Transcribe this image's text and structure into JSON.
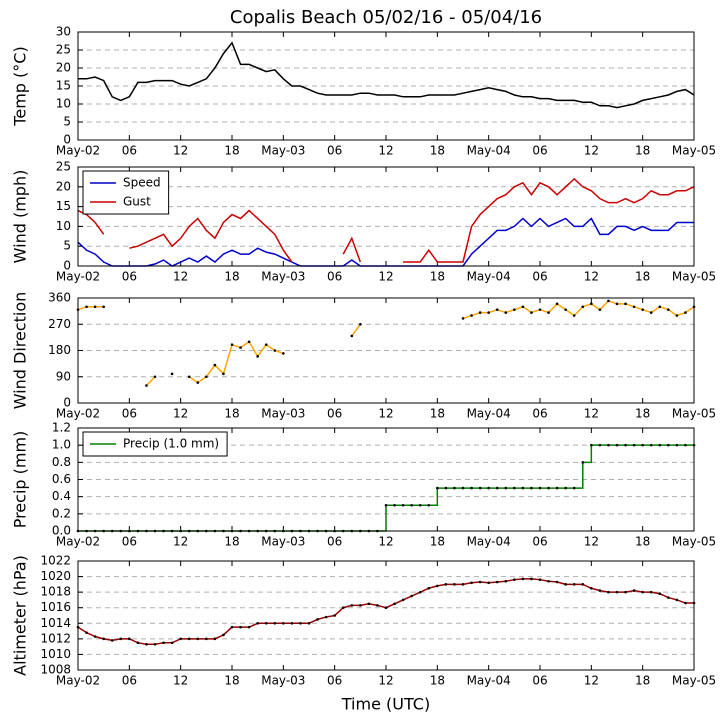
{
  "chart_data": [
    {
      "type": "line",
      "title": "Copalis Beach 05/02/16 - 05/04/16",
      "ylabel": "Temp (°C)",
      "x": [
        0,
        1,
        2,
        3,
        4,
        5,
        6,
        7,
        8,
        9,
        10,
        11,
        12,
        13,
        14,
        15,
        16,
        17,
        18,
        19,
        20,
        21,
        22,
        23,
        24,
        25,
        26,
        27,
        28,
        29,
        30,
        31,
        32,
        33,
        34,
        35,
        36,
        37,
        38,
        39,
        40,
        41,
        42,
        43,
        44,
        45,
        46,
        47,
        48,
        49,
        50,
        51,
        52,
        53,
        54,
        55,
        56,
        57,
        58,
        59,
        60,
        61,
        62,
        63,
        64,
        65,
        66,
        67,
        68,
        69,
        70,
        71,
        72
      ],
      "series": [
        {
          "color": "#000000",
          "values": [
            17,
            17,
            17.5,
            16.5,
            12,
            11,
            12,
            16,
            16,
            16.5,
            16.5,
            16.5,
            15.5,
            15,
            16,
            17,
            20,
            24,
            27,
            21,
            21,
            20,
            19,
            19.5,
            17,
            15,
            15,
            14,
            13,
            12.5,
            12.5,
            12.5,
            12.5,
            13,
            13,
            12.5,
            12.5,
            12.5,
            12,
            12,
            12,
            12.5,
            12.5,
            12.5,
            12.5,
            13,
            13.5,
            14,
            14.5,
            14,
            13.5,
            12.5,
            12,
            12,
            11.5,
            11.5,
            11,
            11,
            11,
            10.5,
            10.5,
            9.5,
            9.5,
            9,
            9.5,
            10,
            11,
            11.5,
            12,
            12.5,
            13.5,
            14,
            12.5
          ]
        }
      ],
      "xlim": [
        0,
        72
      ],
      "xticks": [
        {
          "value": 0,
          "label": "May-02"
        },
        {
          "value": 6,
          "label": "06"
        },
        12,
        18,
        {
          "value": 24,
          "label": "May-03"
        },
        {
          "value": 30,
          "label": "06"
        },
        {
          "value": 36,
          "label": "12"
        },
        {
          "value": 42,
          "label": "18"
        },
        {
          "value": 48,
          "label": "May-04"
        },
        {
          "value": 54,
          "label": "06"
        },
        {
          "value": 60,
          "label": "12"
        },
        {
          "value": 66,
          "label": "18"
        },
        {
          "value": 72,
          "label": "May-05"
        }
      ],
      "ylim": [
        0,
        30
      ],
      "yticks": [
        0,
        5,
        10,
        15,
        20,
        25,
        30
      ],
      "grid": true,
      "markers": false,
      "step": false
    },
    {
      "type": "line",
      "ylabel": "Wind (mph)",
      "x": [
        0,
        1,
        2,
        3,
        4,
        5,
        6,
        7,
        8,
        9,
        10,
        11,
        12,
        13,
        14,
        15,
        16,
        17,
        18,
        19,
        20,
        21,
        22,
        23,
        24,
        25,
        26,
        27,
        28,
        29,
        30,
        31,
        32,
        33,
        34,
        35,
        36,
        37,
        38,
        39,
        40,
        41,
        42,
        43,
        44,
        45,
        46,
        47,
        48,
        49,
        50,
        51,
        52,
        53,
        54,
        55,
        56,
        57,
        58,
        59,
        60,
        61,
        62,
        63,
        64,
        65,
        66,
        67,
        68,
        69,
        70,
        71,
        72
      ],
      "series": [
        {
          "name": "Speed",
          "color": "#0000cc",
          "values": [
            6,
            4,
            3,
            1,
            0,
            0,
            0,
            0,
            0,
            0.5,
            1.5,
            0,
            1,
            2,
            1,
            2.5,
            1,
            3,
            4,
            3,
            3,
            4.5,
            3.5,
            3,
            2,
            1,
            0,
            0,
            0,
            0,
            0,
            0,
            1.5,
            0,
            0,
            0,
            0,
            0,
            0,
            0,
            0,
            0,
            0,
            0,
            0,
            0,
            3,
            5,
            7,
            9,
            9,
            10,
            12,
            10,
            12,
            10,
            11,
            12,
            10,
            10,
            12,
            8,
            8,
            10,
            10,
            9,
            10,
            9,
            9,
            9,
            11,
            11,
            11
          ]
        },
        {
          "name": "Gust",
          "color": "#cc0000",
          "values": [
            14,
            13,
            11,
            8,
            null,
            null,
            4.5,
            5,
            6,
            7,
            8,
            5,
            7,
            10,
            12,
            9,
            7,
            11,
            13,
            12,
            14,
            12,
            10,
            8,
            4,
            1,
            null,
            null,
            null,
            null,
            null,
            3,
            7,
            1,
            null,
            null,
            null,
            null,
            1,
            1,
            1,
            4,
            1,
            1,
            1,
            1,
            10,
            13,
            15,
            17,
            18,
            20,
            21,
            18,
            21,
            20,
            18,
            20,
            22,
            20,
            19,
            17,
            16,
            16,
            17,
            16,
            17,
            19,
            18,
            18,
            19,
            19,
            20
          ]
        }
      ],
      "xlim": [
        0,
        72
      ],
      "xticks": [
        {
          "value": 0,
          "label": "May-02"
        },
        {
          "value": 6,
          "label": "06"
        },
        12,
        18,
        {
          "value": 24,
          "label": "May-03"
        },
        {
          "value": 30,
          "label": "06"
        },
        {
          "value": 36,
          "label": "12"
        },
        {
          "value": 42,
          "label": "18"
        },
        {
          "value": 48,
          "label": "May-04"
        },
        {
          "value": 54,
          "label": "06"
        },
        {
          "value": 60,
          "label": "12"
        },
        {
          "value": 66,
          "label": "18"
        },
        {
          "value": 72,
          "label": "May-05"
        }
      ],
      "ylim": [
        0,
        25
      ],
      "yticks": [
        0,
        5,
        10,
        15,
        20,
        25
      ],
      "grid": true,
      "legend": "upper left",
      "markers": false,
      "step": false
    },
    {
      "type": "line",
      "ylabel": "Wind Direction",
      "x": [
        0,
        1,
        2,
        3,
        4,
        5,
        6,
        7,
        8,
        9,
        10,
        11,
        12,
        13,
        14,
        15,
        16,
        17,
        18,
        19,
        20,
        21,
        22,
        23,
        24,
        25,
        26,
        27,
        28,
        29,
        30,
        31,
        32,
        33,
        34,
        35,
        36,
        37,
        38,
        39,
        40,
        41,
        42,
        43,
        44,
        45,
        46,
        47,
        48,
        49,
        50,
        51,
        52,
        53,
        54,
        55,
        56,
        57,
        58,
        59,
        60,
        61,
        62,
        63,
        64,
        65,
        66,
        67,
        68,
        69,
        70,
        71,
        72
      ],
      "series": [
        {
          "color": "#ffa500",
          "values": [
            320,
            330,
            330,
            330,
            null,
            null,
            null,
            null,
            60,
            90,
            null,
            100,
            null,
            90,
            70,
            90,
            130,
            100,
            200,
            190,
            210,
            160,
            200,
            180,
            170,
            null,
            null,
            null,
            null,
            null,
            null,
            null,
            230,
            270,
            null,
            null,
            null,
            null,
            null,
            null,
            null,
            null,
            null,
            null,
            null,
            290,
            300,
            310,
            310,
            320,
            310,
            320,
            330,
            310,
            320,
            310,
            340,
            320,
            300,
            330,
            340,
            320,
            350,
            340,
            340,
            330,
            320,
            310,
            330,
            320,
            300,
            310,
            330
          ]
        }
      ],
      "xlim": [
        0,
        72
      ],
      "xticks": [
        {
          "value": 0,
          "label": "May-02"
        },
        {
          "value": 6,
          "label": "06"
        },
        12,
        18,
        {
          "value": 24,
          "label": "May-03"
        },
        {
          "value": 30,
          "label": "06"
        },
        {
          "value": 36,
          "label": "12"
        },
        {
          "value": 42,
          "label": "18"
        },
        {
          "value": 48,
          "label": "May-04"
        },
        {
          "value": 54,
          "label": "06"
        },
        {
          "value": 60,
          "label": "12"
        },
        {
          "value": 66,
          "label": "18"
        },
        {
          "value": 72,
          "label": "May-05"
        }
      ],
      "ylim": [
        0,
        360
      ],
      "yticks": [
        0,
        90,
        180,
        270,
        360
      ],
      "grid": true,
      "markers": true,
      "step": false
    },
    {
      "type": "line",
      "ylabel": "Precip (mm)",
      "x": [
        0,
        1,
        2,
        3,
        4,
        5,
        6,
        7,
        8,
        9,
        10,
        11,
        12,
        13,
        14,
        15,
        16,
        17,
        18,
        19,
        20,
        21,
        22,
        23,
        24,
        25,
        26,
        27,
        28,
        29,
        30,
        31,
        32,
        33,
        34,
        35,
        36,
        37,
        38,
        39,
        40,
        41,
        42,
        43,
        44,
        45,
        46,
        47,
        48,
        49,
        50,
        51,
        52,
        53,
        54,
        55,
        56,
        57,
        58,
        59,
        60,
        61,
        62,
        63,
        64,
        65,
        66,
        67,
        68,
        69,
        70,
        71,
        72
      ],
      "series": [
        {
          "name": "Precip (1.0 mm)",
          "color": "#008000",
          "values": [
            0,
            0,
            0,
            0,
            0,
            0,
            0,
            0,
            0,
            0,
            0,
            0,
            0,
            0,
            0,
            0,
            0,
            0,
            0,
            0,
            0,
            0,
            0,
            0,
            0,
            0,
            0,
            0,
            0,
            0,
            0,
            0,
            0,
            0,
            0,
            0,
            0.3,
            0.3,
            0.3,
            0.3,
            0.3,
            0.3,
            0.5,
            0.5,
            0.5,
            0.5,
            0.5,
            0.5,
            0.5,
            0.5,
            0.5,
            0.5,
            0.5,
            0.5,
            0.5,
            0.5,
            0.5,
            0.5,
            0.5,
            0.8,
            1,
            1,
            1,
            1,
            1,
            1,
            1,
            1,
            1,
            1,
            1,
            1,
            1
          ]
        }
      ],
      "xlim": [
        0,
        72
      ],
      "xticks": [
        {
          "value": 0,
          "label": "May-02"
        },
        {
          "value": 6,
          "label": "06"
        },
        12,
        18,
        {
          "value": 24,
          "label": "May-03"
        },
        {
          "value": 30,
          "label": "06"
        },
        {
          "value": 36,
          "label": "12"
        },
        {
          "value": 42,
          "label": "18"
        },
        {
          "value": 48,
          "label": "May-04"
        },
        {
          "value": 54,
          "label": "06"
        },
        {
          "value": 60,
          "label": "12"
        },
        {
          "value": 66,
          "label": "18"
        },
        {
          "value": 72,
          "label": "May-05"
        }
      ],
      "ylim": [
        0,
        1.2
      ],
      "yticks": [
        {
          "value": 0,
          "label": "0.0"
        },
        0.2,
        0.4,
        0.6,
        0.8,
        {
          "value": 1,
          "label": "1.0"
        },
        1.2
      ],
      "grid": true,
      "legend": "upper left",
      "markers": true,
      "step": true
    },
    {
      "type": "line",
      "ylabel": "Altimeter (hPa)",
      "xlabel": "Time (UTC)",
      "x": [
        0,
        1,
        2,
        3,
        4,
        5,
        6,
        7,
        8,
        9,
        10,
        11,
        12,
        13,
        14,
        15,
        16,
        17,
        18,
        19,
        20,
        21,
        22,
        23,
        24,
        25,
        26,
        27,
        28,
        29,
        30,
        31,
        32,
        33,
        34,
        35,
        36,
        37,
        38,
        39,
        40,
        41,
        42,
        43,
        44,
        45,
        46,
        47,
        48,
        49,
        50,
        51,
        52,
        53,
        54,
        55,
        56,
        57,
        58,
        59,
        60,
        61,
        62,
        63,
        64,
        65,
        66,
        67,
        68,
        69,
        70,
        71,
        72
      ],
      "series": [
        {
          "color": "#990000",
          "values": [
            1013.5,
            1012.8,
            1012.3,
            1012,
            1011.8,
            1012,
            1012,
            1011.5,
            1011.3,
            1011.3,
            1011.5,
            1011.5,
            1012,
            1012,
            1012,
            1012,
            1012,
            1012.5,
            1013.5,
            1013.5,
            1013.5,
            1014,
            1014,
            1014,
            1014,
            1014,
            1014,
            1014,
            1014.5,
            1014.8,
            1015,
            1016,
            1016.3,
            1016.3,
            1016.5,
            1016.3,
            1016,
            1016.5,
            1017,
            1017.5,
            1018,
            1018.5,
            1018.8,
            1019,
            1019,
            1019,
            1019.2,
            1019.3,
            1019.2,
            1019.3,
            1019.4,
            1019.6,
            1019.7,
            1019.7,
            1019.6,
            1019.4,
            1019.3,
            1019,
            1019,
            1019,
            1018.5,
            1018.2,
            1018,
            1018,
            1018,
            1018.2,
            1018,
            1018,
            1017.8,
            1017.3,
            1017,
            1016.6,
            1016.6
          ]
        }
      ],
      "xlim": [
        0,
        72
      ],
      "xticks": [
        {
          "value": 0,
          "label": "May-02"
        },
        {
          "value": 6,
          "label": "06"
        },
        12,
        18,
        {
          "value": 24,
          "label": "May-03"
        },
        {
          "value": 30,
          "label": "06"
        },
        {
          "value": 36,
          "label": "12"
        },
        {
          "value": 42,
          "label": "18"
        },
        {
          "value": 48,
          "label": "May-04"
        },
        {
          "value": 54,
          "label": "06"
        },
        {
          "value": 60,
          "label": "12"
        },
        {
          "value": 66,
          "label": "18"
        },
        {
          "value": 72,
          "label": "May-05"
        }
      ],
      "ylim": [
        1008,
        1022
      ],
      "yticks": [
        1008,
        1010,
        1012,
        1014,
        1016,
        1018,
        1020,
        1022
      ],
      "grid": true,
      "markers": true,
      "step": false
    }
  ]
}
